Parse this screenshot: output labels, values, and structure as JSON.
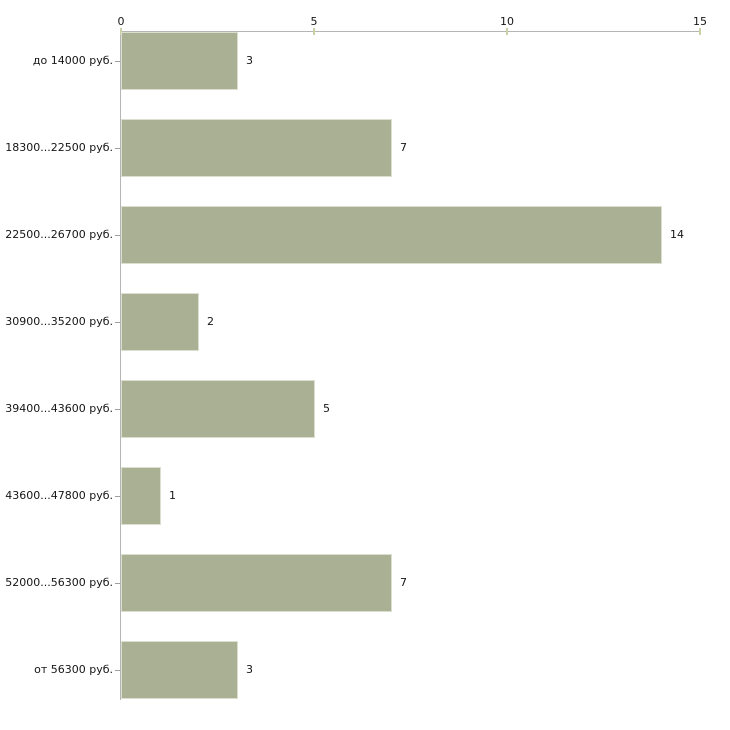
{
  "chart_data": {
    "type": "bar",
    "orientation": "horizontal",
    "title": "",
    "xlabel": "",
    "ylabel": "",
    "categories": [
      "до 14000 руб.",
      "18300...22500 руб.",
      "22500...26700 руб.",
      "30900...35200 руб.",
      "39400...43600 руб.",
      "43600...47800 руб.",
      "52000...56300 руб.",
      "от 56300 руб."
    ],
    "values": [
      3,
      7,
      14,
      2,
      5,
      1,
      7,
      3
    ],
    "x_ticks": [
      0,
      5,
      10,
      15
    ],
    "xlim": [
      0,
      15
    ],
    "grid": false,
    "legend": false,
    "colors": {
      "bar_fill": "#aab093",
      "bar_border": "#dcdfd0",
      "axis_line": "#b5b5b5",
      "x_tick_mark": "#cccfa3",
      "y_tick_mark": "#a0a09a",
      "text": "#161616"
    }
  }
}
